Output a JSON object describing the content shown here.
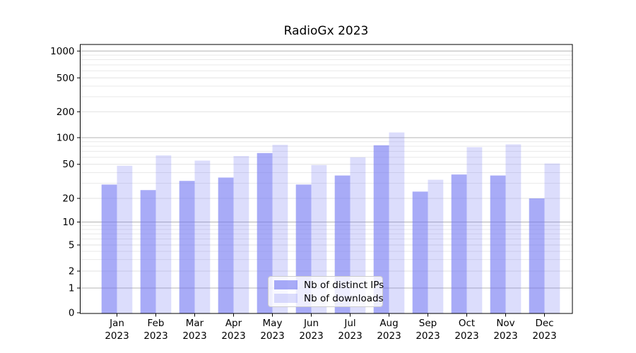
{
  "chart_data": {
    "type": "bar",
    "title": "RadioGx 2023",
    "categories": [
      "Jan",
      "Feb",
      "Mar",
      "Apr",
      "May",
      "Jun",
      "Jul",
      "Aug",
      "Sep",
      "Oct",
      "Nov",
      "Dec"
    ],
    "year_label": "2023",
    "series": [
      {
        "name": "Nb of distinct IPs",
        "color": "rgba(115,119,242,0.62)",
        "values": [
          29,
          25,
          32,
          35,
          67,
          29,
          37,
          82,
          24,
          38,
          37,
          20
        ]
      },
      {
        "name": "Nb of downloads",
        "color": "rgba(115,119,242,0.25)",
        "values": [
          48,
          63,
          55,
          62,
          83,
          49,
          60,
          115,
          33,
          78,
          84,
          51
        ]
      }
    ],
    "yticks": [
      0,
      1,
      2,
      5,
      10,
      20,
      50,
      100,
      200,
      500,
      1000
    ],
    "yscale": "asinh",
    "ylim": [
      0,
      1200
    ],
    "grid": true,
    "legend_position": "lower center"
  },
  "colors": {
    "major_grid": "#b4b4b4",
    "labeled_grid": "#e2e2e2",
    "minor_grid": "#e9e9e9",
    "axis": "#000000"
  }
}
